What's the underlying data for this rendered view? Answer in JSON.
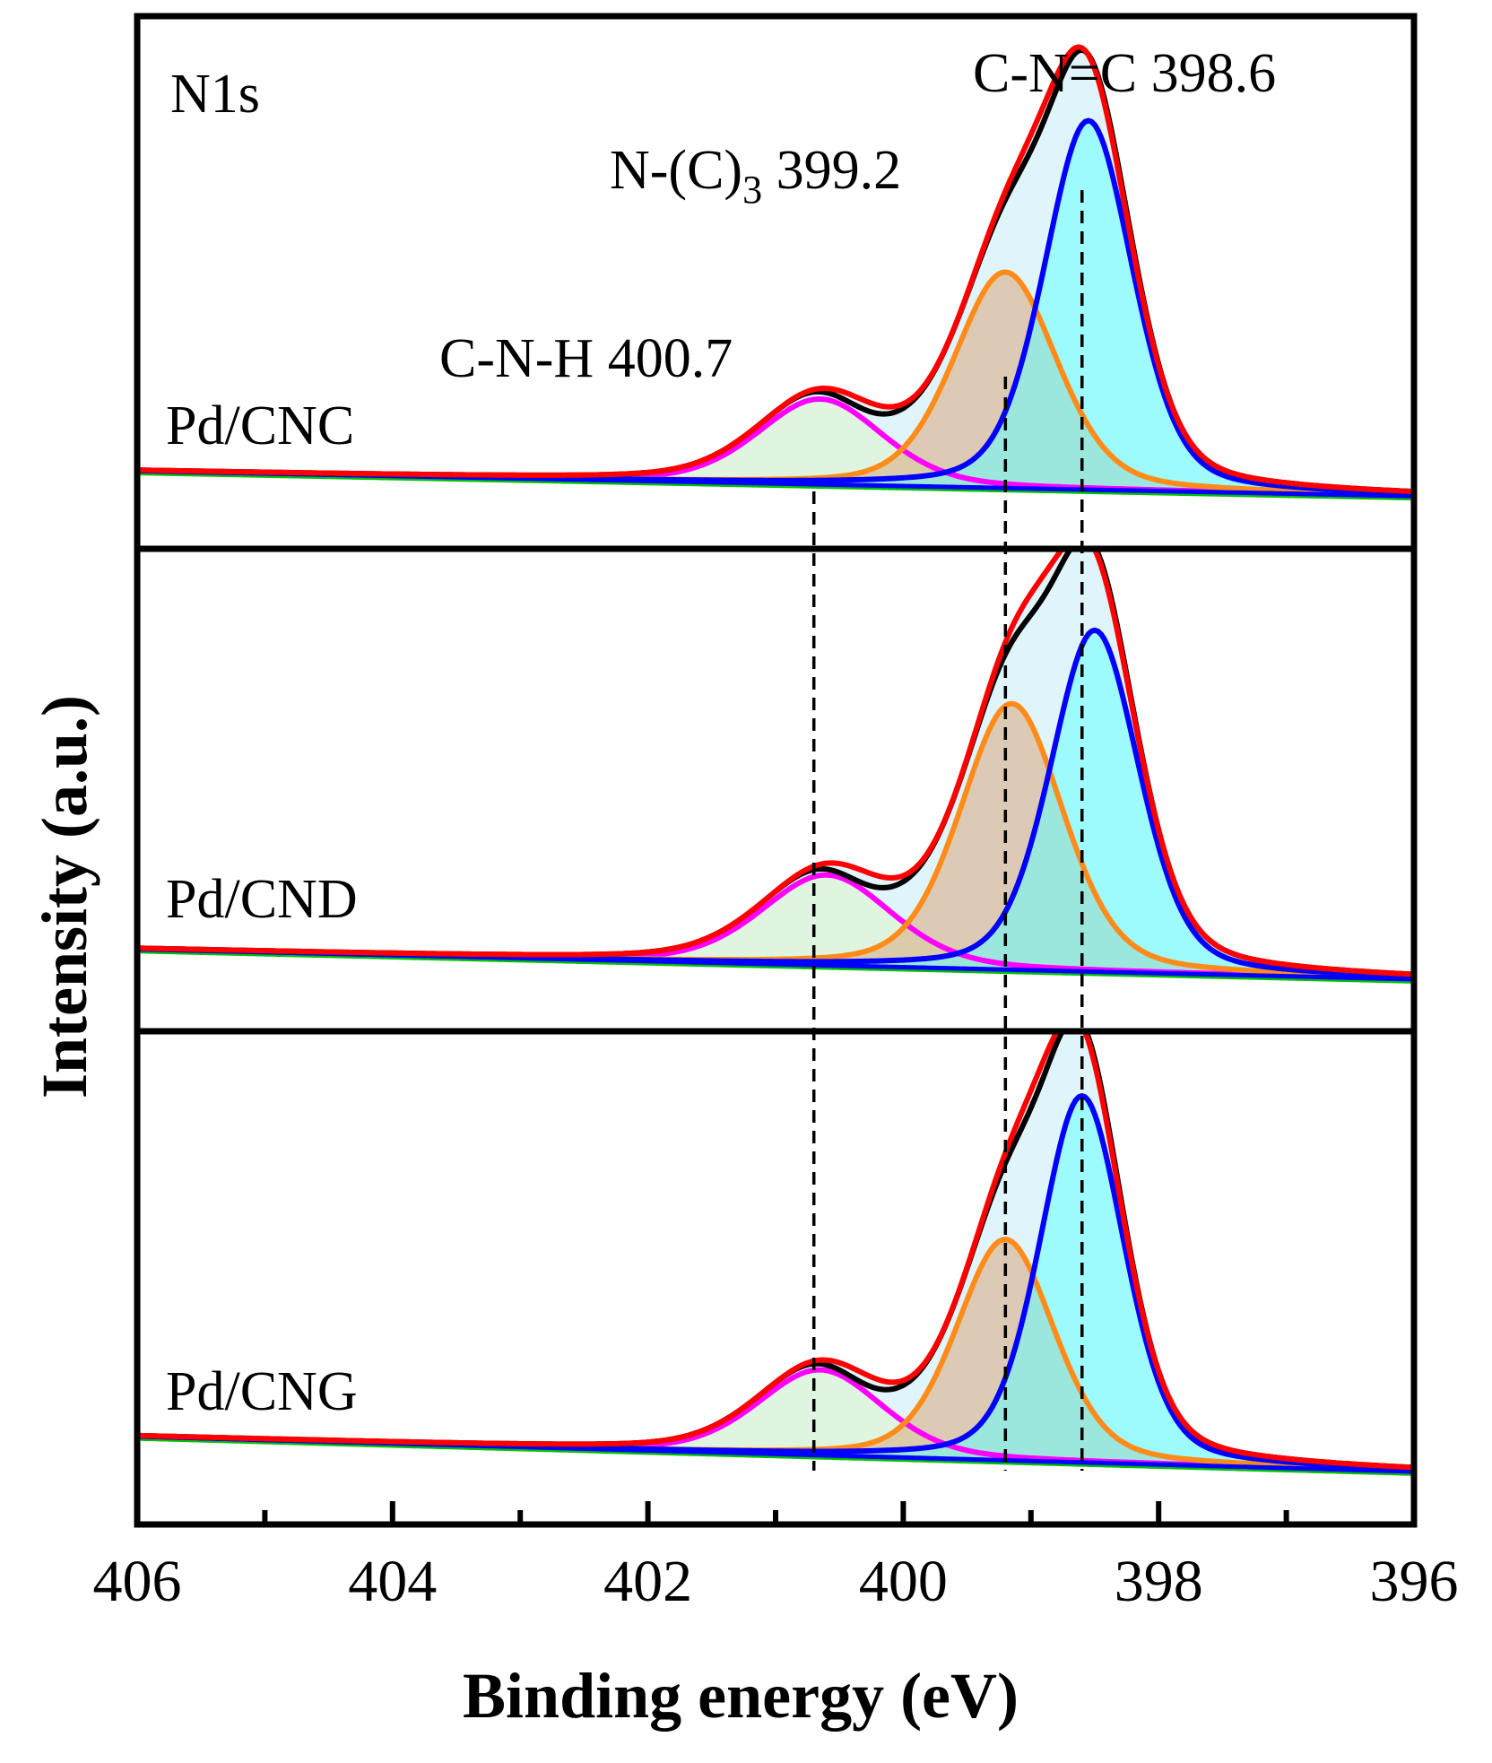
{
  "chart_data": {
    "type": "line",
    "title": "N1s",
    "xlabel": "Binding energy (eV)",
    "ylabel": "Intensity (a.u.)",
    "xlim": [
      406,
      396
    ],
    "x_reversed": true,
    "x_ticks": [
      406,
      404,
      402,
      400,
      398,
      396
    ],
    "x_minor_ticks": [
      405,
      403,
      401,
      399,
      397
    ],
    "y_ticks_shown": false,
    "reference_lines": [
      {
        "label": "C-N-H 400.7",
        "x": 400.7
      },
      {
        "label_main": "N-(C)",
        "label_sub": "3",
        "label_value": " 399.2",
        "x": 399.2
      },
      {
        "label": "C-N=C 398.6",
        "x": 398.6
      }
    ],
    "component_colors": {
      "raw": "#000000",
      "envelope": "#ff0000",
      "C-N=C": "#0000ff",
      "N-(C)3": "#ff8c1a",
      "C-N-H": "#ff00ff",
      "fill_C-N=C": "#66ffff",
      "fill_N-(C)3": "#d9a87a",
      "fill_C-N-H": "#e0f5c8",
      "fill_envelope": "#d6f0fa"
    },
    "panels": [
      {
        "sample": "Pd/CNC",
        "baseline": [
          0.3,
          -0.2
        ],
        "peaks": [
          {
            "name": "C-N-H",
            "center": 400.65,
            "fwhm": 1.15,
            "height": 1.7
          },
          {
            "name": "N-(C)3",
            "center": 399.2,
            "fwhm": 0.95,
            "height": 4.3
          },
          {
            "name": "C-N=C",
            "center": 398.55,
            "fwhm": 0.82,
            "height": 7.35
          }
        ],
        "raw_offset": [
          {
            "x": 400.3,
            "dy": -0.18
          },
          {
            "x": 398.9,
            "dy": -0.35
          },
          {
            "x": 398.45,
            "dy": 0.15
          }
        ]
      },
      {
        "sample": "Pd/CND",
        "baseline": [
          0.35,
          -0.25
        ],
        "peaks": [
          {
            "name": "C-N-H",
            "center": 400.6,
            "fwhm": 1.2,
            "height": 1.8
          },
          {
            "name": "N-(C)3",
            "center": 399.15,
            "fwhm": 0.95,
            "height": 5.3
          },
          {
            "name": "C-N=C",
            "center": 398.5,
            "fwhm": 0.82,
            "height": 6.8
          }
        ],
        "raw_offset": [
          {
            "x": 400.3,
            "dy": -0.25
          },
          {
            "x": 398.9,
            "dy": -0.5
          },
          {
            "x": 398.55,
            "dy": 0.2
          }
        ]
      },
      {
        "sample": "Pd/CNG",
        "baseline": [
          0.45,
          -0.25
        ],
        "peaks": [
          {
            "name": "C-N-H",
            "center": 400.65,
            "fwhm": 1.15,
            "height": 1.7
          },
          {
            "name": "N-(C)3",
            "center": 399.2,
            "fwhm": 0.9,
            "height": 4.4
          },
          {
            "name": "C-N=C",
            "center": 398.6,
            "fwhm": 0.78,
            "height": 7.3
          }
        ],
        "raw_offset": [
          {
            "x": 400.3,
            "dy": -0.2
          },
          {
            "x": 398.9,
            "dy": -0.45
          },
          {
            "x": 398.6,
            "dy": 0.25
          }
        ]
      }
    ]
  }
}
